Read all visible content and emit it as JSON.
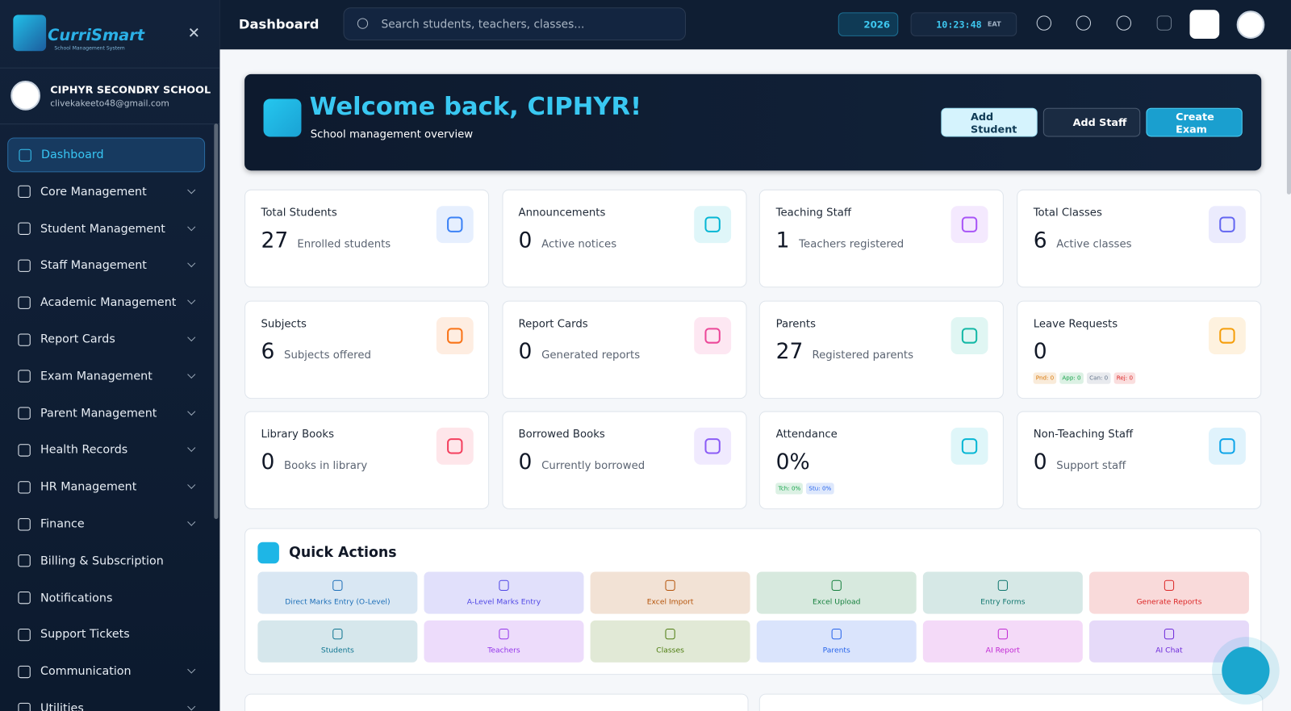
{
  "sidebar": {
    "logo": "CurriSmart",
    "logo_subtitle": "School Management System",
    "school_name": "CIPHYR SECONDRY SCHOOL",
    "email": "clivekakeeto48@gmail.com",
    "nav": [
      {
        "label": "Dashboard",
        "active": true,
        "submenu": false
      },
      {
        "label": "Core Management",
        "submenu": true
      },
      {
        "label": "Student Management",
        "submenu": true
      },
      {
        "label": "Staff Management",
        "submenu": true
      },
      {
        "label": "Academic Management",
        "submenu": true
      },
      {
        "label": "Report Cards",
        "submenu": true
      },
      {
        "label": "Exam Management",
        "submenu": true
      },
      {
        "label": "Parent Management",
        "submenu": true
      },
      {
        "label": "Health Records",
        "submenu": true
      },
      {
        "label": "HR Management",
        "submenu": true
      },
      {
        "label": "Finance",
        "submenu": true
      },
      {
        "label": "Billing & Subscription",
        "submenu": false
      },
      {
        "label": "Notifications",
        "submenu": false
      },
      {
        "label": "Support Tickets",
        "submenu": false
      },
      {
        "label": "Communication",
        "submenu": true
      },
      {
        "label": "Utilities",
        "submenu": true
      }
    ]
  },
  "header": {
    "title": "Dashboard",
    "search_placeholder": "Search students, teachers, classes...",
    "year": "2026",
    "time": "10:23:48",
    "timezone": "EAT"
  },
  "welcome": {
    "title": "Welcome back, CIPHYR!",
    "subtitle": "School management overview",
    "buttons": [
      "Add Student",
      "Add Staff",
      "Create Exam"
    ]
  },
  "stats": [
    {
      "label": "Total Students",
      "value": 27,
      "caption": "Enrolled students",
      "color": "#3b82f6"
    },
    {
      "label": "Announcements",
      "value": 0,
      "caption": "Active notices",
      "color": "#06b6d4"
    },
    {
      "label": "Teaching Staff",
      "value": 1,
      "caption": "Teachers registered",
      "color": "#a855f7"
    },
    {
      "label": "Total Classes",
      "value": 6,
      "caption": "Active classes",
      "color": "#6366f1"
    },
    {
      "label": "Subjects",
      "value": 6,
      "caption": "Subjects offered",
      "color": "#f97316"
    },
    {
      "label": "Report Cards",
      "value": 0,
      "caption": "Generated reports",
      "color": "#ec4899"
    },
    {
      "label": "Parents",
      "value": 27,
      "caption": "Registered parents",
      "color": "#14b8a6"
    },
    {
      "label": "Leave Requests",
      "value": 0,
      "badges": [
        {
          "text": "Pnd: 0",
          "color": "#d97706"
        },
        {
          "text": "App: 0",
          "color": "#16a34a"
        },
        {
          "text": "Can: 0",
          "color": "#64748b"
        },
        {
          "text": "Rej: 0",
          "color": "#dc2626"
        }
      ],
      "color": "#f59e0b"
    },
    {
      "label": "Library Books",
      "value": 0,
      "caption": "Books in library",
      "color": "#f43f5e"
    },
    {
      "label": "Borrowed Books",
      "value": 0,
      "caption": "Currently borrowed",
      "color": "#8b5cf6"
    },
    {
      "label": "Attendance",
      "value": "0%",
      "badges": [
        {
          "text": "Tch: 0%",
          "color": "#16a34a"
        },
        {
          "text": "Stu: 0%",
          "color": "#2563eb"
        }
      ],
      "color": "#06b6d4"
    },
    {
      "label": "Non-Teaching Staff",
      "value": 0,
      "caption": "Support staff",
      "color": "#0ea5e9"
    }
  ],
  "quick_actions": {
    "title": "Quick Actions",
    "items": [
      {
        "label": "Direct Marks Entry (O-Level)",
        "color": "#1d6fb8"
      },
      {
        "label": "A-Level Marks Entry",
        "color": "#4f46e5"
      },
      {
        "label": "Excel Import",
        "color": "#b45309"
      },
      {
        "label": "Excel Upload",
        "color": "#15803d"
      },
      {
        "label": "Entry Forms",
        "color": "#0f766e"
      },
      {
        "label": "Generate Reports",
        "color": "#dc2626"
      },
      {
        "label": "Students",
        "color": "#0e7490"
      },
      {
        "label": "Teachers",
        "color": "#9333ea"
      },
      {
        "label": "Classes",
        "color": "#4d7c0f"
      },
      {
        "label": "Parents",
        "color": "#2563eb"
      },
      {
        "label": "AI Report",
        "color": "#c026d3"
      },
      {
        "label": "AI Chat",
        "color": "#6d28d9"
      }
    ]
  }
}
